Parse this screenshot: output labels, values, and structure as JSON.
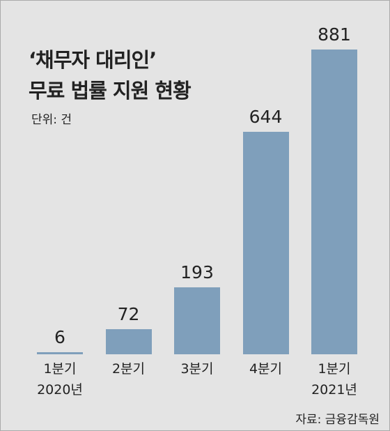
{
  "chart_data": {
    "type": "bar",
    "title": "‘채무자 대리인’",
    "subtitle": "무료 법률 지원 현황",
    "unit": "단위: 건",
    "source": "자료: 금융감독원",
    "categories": [
      "1분기\n2020년",
      "2분기",
      "3분기",
      "4분기",
      "1분기\n2021년"
    ],
    "values": [
      6,
      72,
      193,
      644,
      881
    ],
    "color": "#7f9fbb"
  }
}
